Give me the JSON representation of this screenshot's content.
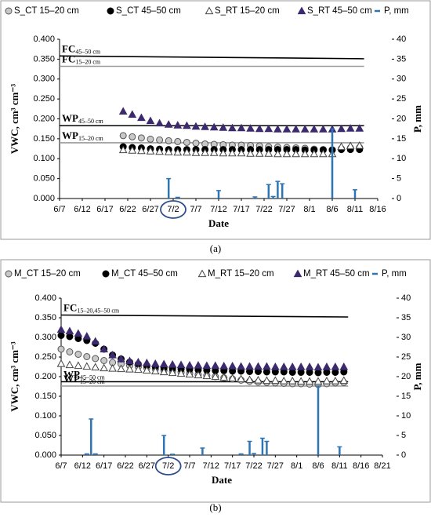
{
  "chart_data": [
    {
      "type": "line",
      "xlabel": "Date",
      "ylabel": "VWC, cm³ cm⁻³",
      "y2label": "P, mm",
      "caption": "(a)",
      "xlim": [
        "6/7",
        "8/16"
      ],
      "xticks": [
        "6/7",
        "6/12",
        "6/17",
        "6/22",
        "6/27",
        "7/2",
        "7/7",
        "7/12",
        "7/17",
        "7/22",
        "7/27",
        "8/1",
        "8/6",
        "8/11",
        "8/16"
      ],
      "ylim": [
        0,
        0.4
      ],
      "yticks": [
        {
          "value": 0,
          "label": "0.000"
        },
        {
          "value": 0.05,
          "label": "0.050"
        },
        {
          "value": 0.1,
          "label": "0.100"
        },
        {
          "value": 0.15,
          "label": "0.150"
        },
        {
          "value": 0.2,
          "label": "0.200"
        },
        {
          "value": 0.25,
          "label": "0.250"
        },
        {
          "value": 0.3,
          "label": "0.300"
        },
        {
          "value": 0.35,
          "label": "0.350"
        },
        {
          "value": 0.4,
          "label": "0.400"
        }
      ],
      "y2lim": [
        0,
        40
      ],
      "y2ticks": [
        0,
        5,
        10,
        15,
        20,
        25,
        30,
        35,
        40
      ],
      "x": [
        "6/21",
        "6/23",
        "6/25",
        "6/27",
        "6/29",
        "7/1",
        "7/3",
        "7/5",
        "7/7",
        "7/9",
        "7/11",
        "7/13",
        "7/15",
        "7/17",
        "7/19",
        "7/21",
        "7/23",
        "7/25",
        "7/27",
        "7/29",
        "7/31",
        "8/2",
        "8/4",
        "8/6",
        "8/8",
        "8/10",
        "8/12"
      ],
      "series": [
        {
          "name": "S_CT 15–20 cm",
          "marker": "circle",
          "color": "#c8c8c8",
          "edge": "#555555",
          "values": [
            0.158,
            0.155,
            0.152,
            0.149,
            0.147,
            0.145,
            0.143,
            0.141,
            0.139,
            0.137,
            0.136,
            0.135,
            0.134,
            0.134,
            0.133,
            0.132,
            0.13,
            0.129,
            0.128,
            0.127,
            0.126,
            0.124,
            0.123,
            0.122,
            0.125,
            0.127,
            0.128
          ]
        },
        {
          "name": "S_CT 45–50 cm",
          "marker": "circle",
          "color": "#000000",
          "edge": "#000000",
          "values": [
            0.13,
            0.128,
            0.127,
            0.125,
            0.124,
            0.123,
            0.123,
            0.123,
            0.123,
            0.123,
            0.123,
            0.123,
            0.123,
            0.123,
            0.123,
            0.123,
            0.123,
            0.123,
            0.123,
            0.123,
            0.122,
            0.122,
            0.122,
            0.122,
            0.123,
            0.123,
            0.123
          ]
        },
        {
          "name": "S_RT 15–20 cm",
          "marker": "triangle",
          "color": "#ffffff",
          "edge": "#444444",
          "values": [
            0.122,
            0.121,
            0.12,
            0.119,
            0.118,
            0.117,
            0.116,
            0.116,
            0.115,
            0.115,
            0.115,
            0.114,
            0.114,
            0.114,
            0.113,
            0.113,
            0.113,
            0.112,
            0.112,
            0.112,
            0.112,
            0.112,
            0.112,
            0.112,
            0.13,
            0.132,
            0.133
          ]
        },
        {
          "name": "S_RT 45–50 cm",
          "marker": "triangle",
          "color": "#3d2a6e",
          "edge": "#3d2a6e",
          "values": [
            0.219,
            0.211,
            0.203,
            0.195,
            0.189,
            0.186,
            0.184,
            0.183,
            0.181,
            0.18,
            0.179,
            0.178,
            0.177,
            0.177,
            0.176,
            0.175,
            0.175,
            0.174,
            0.174,
            0.174,
            0.174,
            0.174,
            0.174,
            0.174,
            0.175,
            0.176,
            0.176
          ]
        },
        {
          "name": "P, mm",
          "marker": "stick",
          "axis": "y2",
          "color": "#2e75b6",
          "x": [
            "7/1",
            "7/3",
            "7/12",
            "7/20",
            "7/23",
            "7/24",
            "7/25",
            "7/26",
            "8/6",
            "8/11"
          ],
          "values": [
            5,
            0.3,
            2,
            0.4,
            3.5,
            0.5,
            4.3,
            3.7,
            17.5,
            2.2
          ]
        }
      ],
      "ref_lines": [
        {
          "text": "FC",
          "subscript": "45–50 cm",
          "color": "#000000",
          "x": [
            "6/7",
            "8/13"
          ],
          "values": [
            0.358,
            0.351
          ]
        },
        {
          "text": "FC",
          "subscript": "15–20 cm",
          "color": "#999999",
          "x": [
            "6/7",
            "8/13"
          ],
          "values": [
            0.332,
            0.332
          ]
        },
        {
          "text": "WP",
          "subscript": "45–50 cm",
          "color": "#000000",
          "x": [
            "6/7",
            "8/13"
          ],
          "values": [
            0.183,
            0.183
          ]
        },
        {
          "text": "WP",
          "subscript": "15–20 cm",
          "color": "#999999",
          "x": [
            "6/7",
            "8/13"
          ],
          "values": [
            0.14,
            0.14
          ]
        }
      ]
    },
    {
      "type": "line",
      "xlabel": "Date",
      "ylabel": "VWC, cm³ cm⁻³",
      "y2label": "P, mm",
      "caption": "(b)",
      "xlim": [
        "6/7",
        "8/21"
      ],
      "xticks": [
        "6/7",
        "6/12",
        "6/17",
        "6/22",
        "6/27",
        "7/2",
        "7/7",
        "7/12",
        "7/17",
        "7/22",
        "7/27",
        "8/1",
        "8/6",
        "8/11",
        "8/16",
        "8/21"
      ],
      "ylim": [
        0,
        0.4
      ],
      "yticks": [
        {
          "value": 0,
          "label": "0.000"
        },
        {
          "value": 0.05,
          "label": "0.050"
        },
        {
          "value": 0.1,
          "label": "0.100"
        },
        {
          "value": 0.15,
          "label": "0.150"
        },
        {
          "value": 0.2,
          "label": "0.200"
        },
        {
          "value": 0.25,
          "label": "0.250"
        },
        {
          "value": 0.3,
          "label": "0.300"
        },
        {
          "value": 0.35,
          "label": "0.350"
        },
        {
          "value": 0.4,
          "label": "0.400"
        }
      ],
      "y2lim": [
        0,
        40
      ],
      "y2ticks": [
        0,
        5,
        10,
        15,
        20,
        25,
        30,
        35,
        40
      ],
      "x": [
        "6/7",
        "6/9",
        "6/11",
        "6/13",
        "6/15",
        "6/17",
        "6/19",
        "6/21",
        "6/23",
        "6/25",
        "6/27",
        "6/29",
        "7/1",
        "7/3",
        "7/5",
        "7/7",
        "7/9",
        "7/11",
        "7/13",
        "7/15",
        "7/17",
        "7/19",
        "7/21",
        "7/23",
        "7/25",
        "7/27",
        "7/29",
        "7/31",
        "8/2",
        "8/4",
        "8/6",
        "8/8",
        "8/10",
        "8/12"
      ],
      "series": [
        {
          "name": "M_CT 15–20 cm",
          "marker": "circle",
          "color": "#c8c8c8",
          "edge": "#555555",
          "values": [
            0.27,
            0.263,
            0.257,
            0.251,
            0.246,
            0.241,
            0.236,
            0.232,
            0.228,
            0.225,
            0.222,
            0.219,
            0.216,
            0.213,
            0.211,
            0.208,
            0.205,
            0.203,
            0.2,
            0.197,
            0.194,
            0.191,
            0.188,
            0.186,
            0.185,
            0.184,
            0.183,
            0.182,
            0.182,
            0.181,
            0.18,
            0.182,
            0.184,
            0.185
          ]
        },
        {
          "name": "M_CT 45–50 cm",
          "marker": "circle",
          "color": "#000000",
          "edge": "#000000",
          "values": [
            0.305,
            0.302,
            0.297,
            0.292,
            0.285,
            0.27,
            0.255,
            0.245,
            0.237,
            0.232,
            0.228,
            0.225,
            0.222,
            0.22,
            0.219,
            0.218,
            0.217,
            0.216,
            0.215,
            0.215,
            0.214,
            0.214,
            0.213,
            0.213,
            0.212,
            0.212,
            0.212,
            0.211,
            0.211,
            0.211,
            0.21,
            0.211,
            0.211,
            0.212
          ]
        },
        {
          "name": "M_RT 15–20 cm",
          "marker": "triangle",
          "color": "#ffffff",
          "edge": "#444444",
          "values": [
            0.233,
            0.23,
            0.228,
            0.226,
            0.224,
            0.222,
            0.221,
            0.22,
            0.219,
            0.218,
            0.216,
            0.214,
            0.212,
            0.21,
            0.208,
            0.206,
            0.204,
            0.202,
            0.2,
            0.198,
            0.196,
            0.194,
            0.192,
            0.191,
            0.19,
            0.19,
            0.189,
            0.189,
            0.188,
            0.188,
            0.188,
            0.189,
            0.189,
            0.19
          ]
        },
        {
          "name": "M_RT 45–50 cm",
          "marker": "triangle",
          "color": "#3d2a6e",
          "edge": "#3d2a6e",
          "values": [
            0.32,
            0.316,
            0.31,
            0.303,
            0.29,
            0.27,
            0.255,
            0.245,
            0.24,
            0.237,
            0.235,
            0.233,
            0.232,
            0.231,
            0.23,
            0.229,
            0.229,
            0.228,
            0.228,
            0.227,
            0.227,
            0.226,
            0.226,
            0.226,
            0.226,
            0.225,
            0.225,
            0.225,
            0.225,
            0.225,
            0.224,
            0.225,
            0.225,
            0.225
          ]
        },
        {
          "name": "P, mm",
          "marker": "stick",
          "axis": "y2",
          "color": "#2e75b6",
          "x": [
            "6/13",
            "6/14",
            "6/15",
            "7/1",
            "7/3",
            "7/10",
            "7/19",
            "7/21",
            "7/22",
            "7/24",
            "7/25",
            "8/6",
            "8/11"
          ],
          "values": [
            0.3,
            9.2,
            0.3,
            5,
            0.2,
            1.8,
            0.3,
            3.5,
            0.4,
            4.3,
            3.5,
            17.6,
            2.1
          ]
        }
      ],
      "ref_lines": [
        {
          "text": "FC",
          "subscript": "15–20,45–50 cm",
          "color": "#000000",
          "x": [
            "6/7",
            "8/13"
          ],
          "values": [
            0.357,
            0.352
          ]
        },
        {
          "text": "WP",
          "subscript": "45–50 cm",
          "color": "#000000",
          "x": [
            "6/7",
            "8/13"
          ],
          "values": [
            0.187,
            0.187
          ]
        },
        {
          "text": "WP",
          "subscript": "15–20 cm",
          "color": "#999999",
          "x": [
            "6/7",
            "8/13"
          ],
          "values": [
            0.176,
            0.176
          ]
        }
      ]
    }
  ]
}
